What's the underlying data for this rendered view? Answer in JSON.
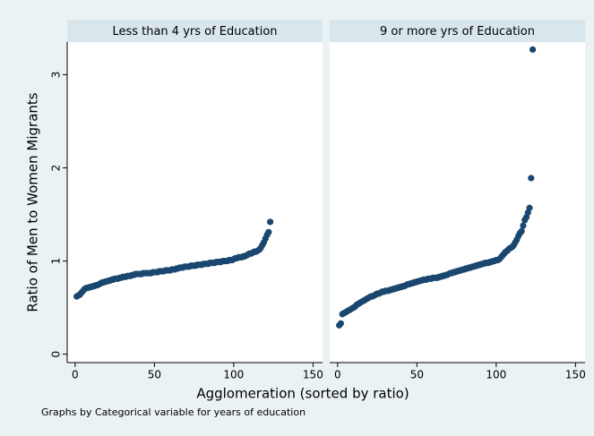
{
  "chart_data": [
    {
      "type": "scatter",
      "title": "Less than 4 yrs of Education",
      "color": "#1a476f",
      "xlim": [
        -5,
        156
      ],
      "ylim": [
        -0.09,
        3.35
      ],
      "xticks": [
        0,
        50,
        100,
        150
      ],
      "yticks": [
        0,
        1,
        2,
        3
      ],
      "x": [
        1,
        2,
        3,
        4,
        5,
        6,
        7,
        8,
        9,
        10,
        11,
        12,
        13,
        14,
        15,
        16,
        17,
        18,
        19,
        20,
        21,
        22,
        23,
        24,
        25,
        26,
        27,
        28,
        29,
        30,
        31,
        32,
        33,
        34,
        35,
        36,
        37,
        38,
        39,
        40,
        41,
        42,
        43,
        44,
        45,
        46,
        47,
        48,
        49,
        50,
        51,
        52,
        53,
        54,
        55,
        56,
        57,
        58,
        59,
        60,
        61,
        62,
        63,
        64,
        65,
        66,
        67,
        68,
        69,
        70,
        71,
        72,
        73,
        74,
        75,
        76,
        77,
        78,
        79,
        80,
        81,
        82,
        83,
        84,
        85,
        86,
        87,
        88,
        89,
        90,
        91,
        92,
        93,
        94,
        95,
        96,
        97,
        98,
        99,
        100,
        101,
        102,
        103,
        104,
        105,
        106,
        107,
        108,
        109,
        110,
        111,
        112,
        113,
        114,
        115,
        116,
        117,
        118,
        119,
        120,
        121,
        122,
        123
      ],
      "values": [
        0.62,
        0.63,
        0.64,
        0.66,
        0.68,
        0.7,
        0.71,
        0.71,
        0.72,
        0.72,
        0.73,
        0.73,
        0.74,
        0.74,
        0.75,
        0.76,
        0.77,
        0.77,
        0.78,
        0.78,
        0.79,
        0.79,
        0.8,
        0.8,
        0.81,
        0.81,
        0.81,
        0.82,
        0.82,
        0.83,
        0.83,
        0.83,
        0.84,
        0.84,
        0.84,
        0.85,
        0.85,
        0.86,
        0.86,
        0.86,
        0.86,
        0.86,
        0.87,
        0.87,
        0.87,
        0.87,
        0.87,
        0.87,
        0.88,
        0.88,
        0.88,
        0.88,
        0.89,
        0.89,
        0.89,
        0.89,
        0.9,
        0.9,
        0.9,
        0.9,
        0.91,
        0.91,
        0.91,
        0.92,
        0.92,
        0.93,
        0.93,
        0.93,
        0.94,
        0.94,
        0.94,
        0.94,
        0.95,
        0.95,
        0.95,
        0.95,
        0.96,
        0.96,
        0.96,
        0.96,
        0.97,
        0.97,
        0.97,
        0.97,
        0.98,
        0.98,
        0.98,
        0.98,
        0.99,
        0.99,
        0.99,
        0.99,
        1.0,
        1.0,
        1.0,
        1.0,
        1.01,
        1.01,
        1.01,
        1.02,
        1.03,
        1.03,
        1.04,
        1.04,
        1.04,
        1.05,
        1.05,
        1.06,
        1.07,
        1.08,
        1.08,
        1.09,
        1.1,
        1.1,
        1.11,
        1.12,
        1.14,
        1.17,
        1.2,
        1.24,
        1.28,
        1.31,
        1.42
      ]
    },
    {
      "type": "scatter",
      "title": "9 or more yrs of Education",
      "color": "#1a476f",
      "xlim": [
        -5,
        156
      ],
      "ylim": [
        -0.09,
        3.35
      ],
      "xticks": [
        0,
        50,
        100,
        150
      ],
      "x": [
        1,
        2,
        3,
        4,
        5,
        6,
        7,
        8,
        9,
        10,
        11,
        12,
        13,
        14,
        15,
        16,
        17,
        18,
        19,
        20,
        21,
        22,
        23,
        24,
        25,
        26,
        27,
        28,
        29,
        30,
        31,
        32,
        33,
        34,
        35,
        36,
        37,
        38,
        39,
        40,
        41,
        42,
        43,
        44,
        45,
        46,
        47,
        48,
        49,
        50,
        51,
        52,
        53,
        54,
        55,
        56,
        57,
        58,
        59,
        60,
        61,
        62,
        63,
        64,
        65,
        66,
        67,
        68,
        69,
        70,
        71,
        72,
        73,
        74,
        75,
        76,
        77,
        78,
        79,
        80,
        81,
        82,
        83,
        84,
        85,
        86,
        87,
        88,
        89,
        90,
        91,
        92,
        93,
        94,
        95,
        96,
        97,
        98,
        99,
        100,
        101,
        102,
        103,
        104,
        105,
        106,
        107,
        108,
        109,
        110,
        111,
        112,
        113,
        114,
        115,
        116,
        117,
        118,
        119,
        120,
        121,
        122,
        123
      ],
      "values": [
        0.31,
        0.33,
        0.43,
        0.44,
        0.45,
        0.46,
        0.47,
        0.48,
        0.49,
        0.5,
        0.51,
        0.53,
        0.54,
        0.55,
        0.56,
        0.57,
        0.58,
        0.59,
        0.6,
        0.61,
        0.62,
        0.62,
        0.63,
        0.64,
        0.65,
        0.65,
        0.66,
        0.67,
        0.67,
        0.68,
        0.68,
        0.68,
        0.69,
        0.69,
        0.7,
        0.7,
        0.71,
        0.71,
        0.72,
        0.72,
        0.73,
        0.73,
        0.74,
        0.75,
        0.75,
        0.76,
        0.76,
        0.77,
        0.77,
        0.78,
        0.78,
        0.79,
        0.79,
        0.8,
        0.8,
        0.8,
        0.81,
        0.81,
        0.81,
        0.82,
        0.82,
        0.82,
        0.82,
        0.83,
        0.83,
        0.84,
        0.84,
        0.85,
        0.85,
        0.86,
        0.87,
        0.87,
        0.88,
        0.88,
        0.89,
        0.89,
        0.9,
        0.9,
        0.91,
        0.91,
        0.92,
        0.92,
        0.93,
        0.93,
        0.94,
        0.94,
        0.95,
        0.95,
        0.96,
        0.96,
        0.97,
        0.97,
        0.98,
        0.98,
        0.98,
        0.99,
        0.99,
        1.0,
        1.0,
        1.01,
        1.01,
        1.02,
        1.04,
        1.06,
        1.08,
        1.1,
        1.11,
        1.13,
        1.14,
        1.15,
        1.17,
        1.2,
        1.23,
        1.27,
        1.3,
        1.32,
        1.38,
        1.44,
        1.47,
        1.52,
        1.57,
        1.89,
        3.27
      ]
    }
  ],
  "y_label": "Ratio of Men to Women Migrants",
  "x_label": "Agglomeration (sorted by ratio)",
  "note": "Graphs by Categorical variable for years of education"
}
